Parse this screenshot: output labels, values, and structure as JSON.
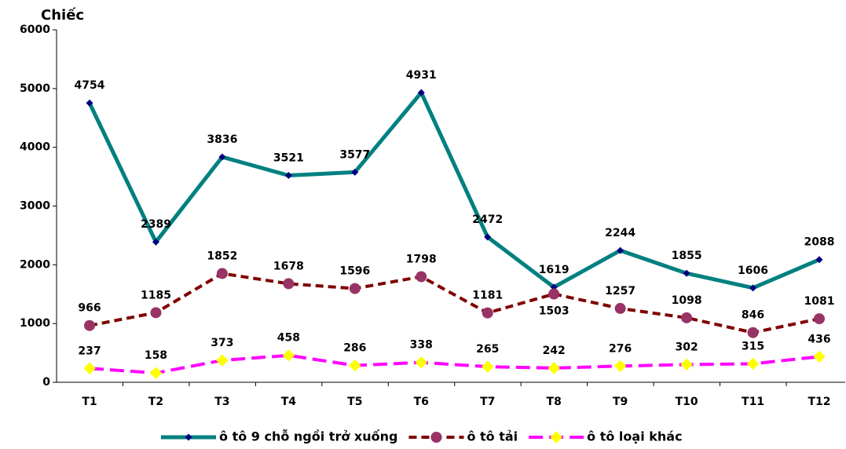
{
  "chart_data": {
    "type": "line",
    "y_label": "Chiếc",
    "categories": [
      "T1",
      "T2",
      "T3",
      "T4",
      "T5",
      "T6",
      "T7",
      "T8",
      "T9",
      "T10",
      "T11",
      "T12"
    ],
    "series": [
      {
        "name": "ô tô 9 chỗ ngồi trở xuống",
        "color": "#008080",
        "marker_color": "#000080",
        "marker": "diamond",
        "dash": false,
        "values": [
          4754,
          2389,
          3836,
          3521,
          3577,
          4931,
          2472,
          1619,
          2244,
          1855,
          1606,
          2088
        ]
      },
      {
        "name": "ô tô tải",
        "color": "#800000",
        "marker_color": "#993366",
        "marker": "circle",
        "dash": true,
        "values": [
          966,
          1185,
          1852,
          1678,
          1596,
          1798,
          1181,
          1503,
          1257,
          1098,
          846,
          1081
        ]
      },
      {
        "name": "ô tô loại khác",
        "color": "#ff00ff",
        "marker_color": "#ffff00",
        "marker": "diamond",
        "dash": true,
        "values": [
          237,
          158,
          373,
          458,
          286,
          338,
          265,
          242,
          276,
          302,
          315,
          436
        ]
      }
    ],
    "ylim": [
      0,
      6000
    ],
    "yticks": [
      0,
      1000,
      2000,
      3000,
      4000,
      5000,
      6000
    ],
    "grid": false,
    "legend": "bottom"
  }
}
